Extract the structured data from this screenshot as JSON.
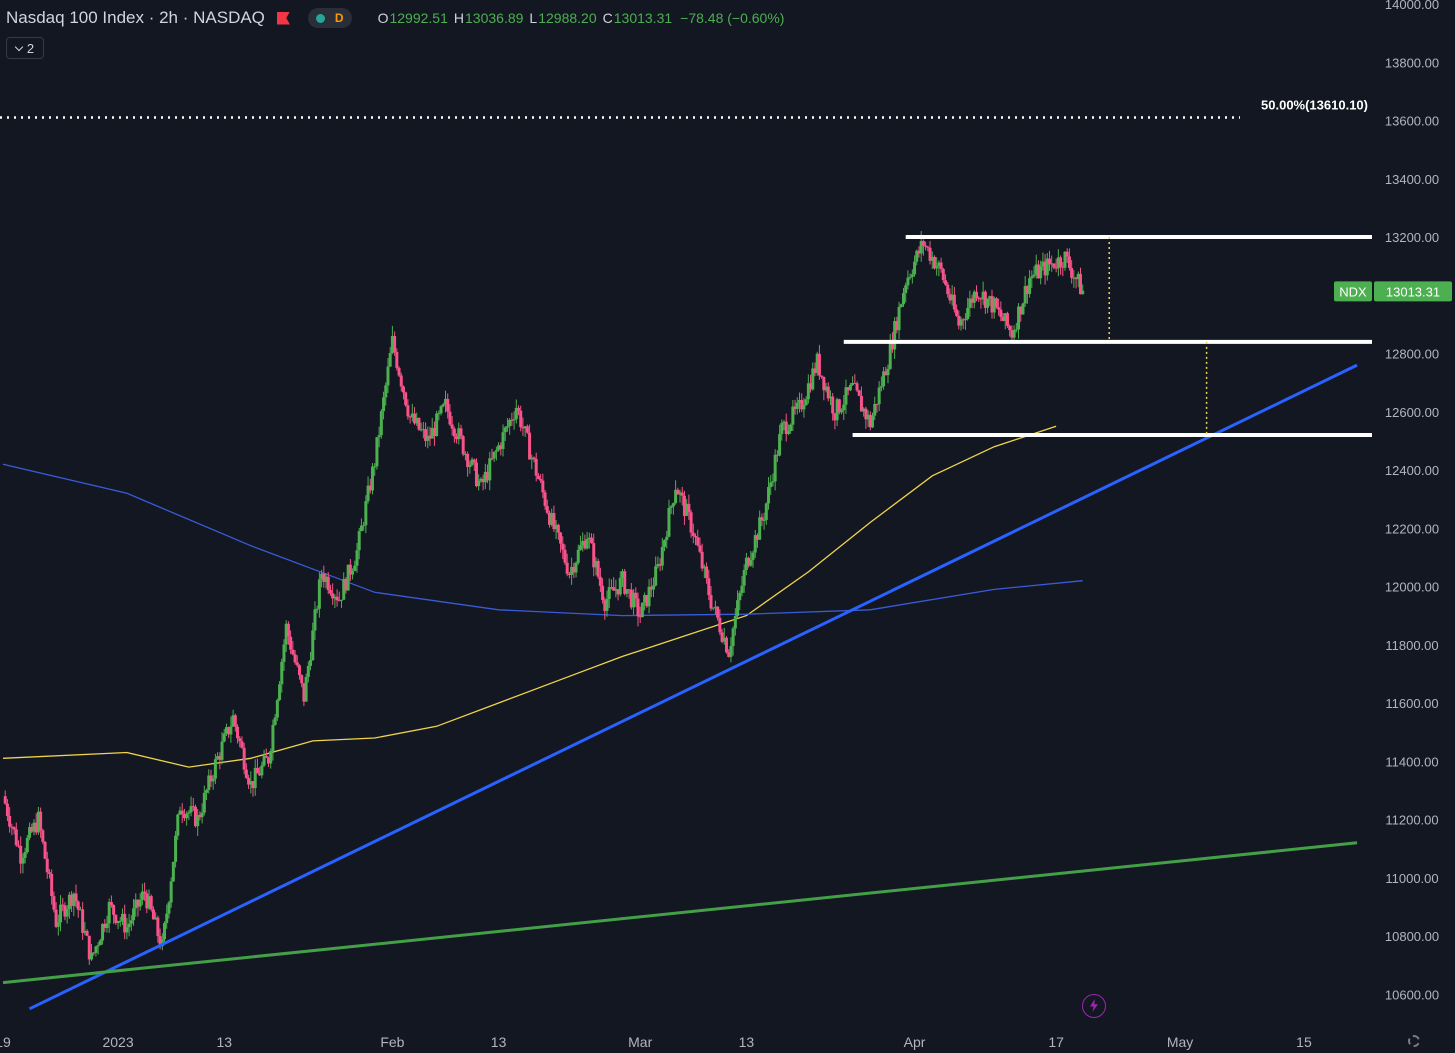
{
  "legend": {
    "symbol_title": "Nasdaq 100 Index · 2h · NASDAQ",
    "delay_badge": "D",
    "open_label": "O",
    "open": "12992.51",
    "high_label": "H",
    "high": "13036.89",
    "low_label": "L",
    "low": "12988.20",
    "close_label": "C",
    "close": "13013.31",
    "change": "−78.48 (−0.60%)"
  },
  "indicators_toggle": {
    "count": "2"
  },
  "colors": {
    "background": "#131722",
    "up_candle": "#4caf50",
    "down_candle": "#f7528a",
    "ma_short": "#f0d44c",
    "ma_long": "#3a5bd9",
    "trend_blue": "#2962ff",
    "trend_green": "#43a047",
    "levels": "#ffffff",
    "price_tag": "#4caf50"
  },
  "chart_data": {
    "type": "candlestick",
    "y_axis": {
      "range": [
        10500,
        14000
      ],
      "ticks": [
        "14000.00",
        "13800.00",
        "13600.00",
        "13400.00",
        "13200.00",
        "13000.00",
        "12800.00",
        "12600.00",
        "12400.00",
        "12200.00",
        "12000.00",
        "11800.00",
        "11600.00",
        "11400.00",
        "11200.00",
        "11000.00",
        "10800.00",
        "10600.00"
      ]
    },
    "x_axis": {
      "range": [
        "2022-12-19",
        "2023-05-21"
      ],
      "ticks": [
        {
          "date": "2022-12-19",
          "label": "19"
        },
        {
          "date": "2023-01-01",
          "label": "2023"
        },
        {
          "date": "2023-01-13",
          "label": "13"
        },
        {
          "date": "2023-02-01",
          "label": "Feb"
        },
        {
          "date": "2023-02-13",
          "label": "13"
        },
        {
          "date": "2023-03-01",
          "label": "Mar"
        },
        {
          "date": "2023-03-13",
          "label": "13"
        },
        {
          "date": "2023-04-01",
          "label": "Apr"
        },
        {
          "date": "2023-04-17",
          "label": "17"
        },
        {
          "date": "2023-05-01",
          "label": "May"
        },
        {
          "date": "2023-05-15",
          "label": "15"
        }
      ]
    },
    "price_path": [
      [
        "2022-12-19",
        11280
      ],
      [
        "2022-12-21",
        11080
      ],
      [
        "2022-12-23",
        11200
      ],
      [
        "2022-12-25",
        10850
      ],
      [
        "2022-12-27",
        10950
      ],
      [
        "2022-12-29",
        10720
      ],
      [
        "2022-12-31",
        10900
      ],
      [
        "2023-01-02",
        10830
      ],
      [
        "2023-01-04",
        10950
      ],
      [
        "2023-01-06",
        10760
      ],
      [
        "2023-01-08",
        11250
      ],
      [
        "2023-01-10",
        11200
      ],
      [
        "2023-01-12",
        11390
      ],
      [
        "2023-01-14",
        11550
      ],
      [
        "2023-01-16",
        11320
      ],
      [
        "2023-01-18",
        11410
      ],
      [
        "2023-01-20",
        11860
      ],
      [
        "2023-01-22",
        11620
      ],
      [
        "2023-01-24",
        12050
      ],
      [
        "2023-01-26",
        11960
      ],
      [
        "2023-01-28",
        12120
      ],
      [
        "2023-01-30",
        12430
      ],
      [
        "2023-02-01",
        12840
      ],
      [
        "2023-02-03",
        12580
      ],
      [
        "2023-02-05",
        12500
      ],
      [
        "2023-02-07",
        12620
      ],
      [
        "2023-02-09",
        12480
      ],
      [
        "2023-02-11",
        12340
      ],
      [
        "2023-02-13",
        12480
      ],
      [
        "2023-02-15",
        12620
      ],
      [
        "2023-02-17",
        12420
      ],
      [
        "2023-02-19",
        12220
      ],
      [
        "2023-02-21",
        12050
      ],
      [
        "2023-02-23",
        12180
      ],
      [
        "2023-02-25",
        11950
      ],
      [
        "2023-02-27",
        12020
      ],
      [
        "2023-03-01",
        11900
      ],
      [
        "2023-03-03",
        12060
      ],
      [
        "2023-03-05",
        12350
      ],
      [
        "2023-03-07",
        12190
      ],
      [
        "2023-03-09",
        11950
      ],
      [
        "2023-03-11",
        11780
      ],
      [
        "2023-03-13",
        12080
      ],
      [
        "2023-03-15",
        12250
      ],
      [
        "2023-03-17",
        12540
      ],
      [
        "2023-03-19",
        12610
      ],
      [
        "2023-03-21",
        12770
      ],
      [
        "2023-03-23",
        12600
      ],
      [
        "2023-03-25",
        12680
      ],
      [
        "2023-03-27",
        12560
      ],
      [
        "2023-03-29",
        12780
      ],
      [
        "2023-03-31",
        13050
      ],
      [
        "2023-04-02",
        13180
      ],
      [
        "2023-04-04",
        13080
      ],
      [
        "2023-04-06",
        12900
      ],
      [
        "2023-04-08",
        13020
      ],
      [
        "2023-04-10",
        12960
      ],
      [
        "2023-04-12",
        12870
      ],
      [
        "2023-04-14",
        13060
      ],
      [
        "2023-04-16",
        13100
      ],
      [
        "2023-04-18",
        13130
      ],
      [
        "2023-04-20",
        13013
      ]
    ],
    "moving_averages": [
      {
        "points": [
          [
            "2022-12-19",
            11410
          ],
          [
            "2023-01-02",
            11430
          ],
          [
            "2023-01-09",
            11380
          ],
          [
            "2023-01-16",
            11410
          ],
          [
            "2023-01-23",
            11470
          ],
          [
            "2023-01-30",
            11480
          ],
          [
            "2023-02-06",
            11520
          ],
          [
            "2023-02-13",
            11600
          ],
          [
            "2023-02-20",
            11680
          ],
          [
            "2023-02-27",
            11760
          ],
          [
            "2023-03-06",
            11830
          ],
          [
            "2023-03-13",
            11900
          ],
          [
            "2023-03-20",
            12050
          ],
          [
            "2023-03-27",
            12220
          ],
          [
            "2023-04-03",
            12380
          ],
          [
            "2023-04-10",
            12480
          ],
          [
            "2023-04-17",
            12550
          ]
        ]
      },
      {
        "points": [
          [
            "2022-12-19",
            12420
          ],
          [
            "2023-01-02",
            12320
          ],
          [
            "2023-01-16",
            12140
          ],
          [
            "2023-01-30",
            11980
          ],
          [
            "2023-02-13",
            11920
          ],
          [
            "2023-02-27",
            11900
          ],
          [
            "2023-03-13",
            11905
          ],
          [
            "2023-03-27",
            11920
          ],
          [
            "2023-04-10",
            11990
          ],
          [
            "2023-04-20",
            12020
          ]
        ]
      }
    ],
    "drawings": {
      "fib_level": {
        "price": 13610.1,
        "label": "50.00%(13610.10)"
      },
      "horizontal_levels": [
        {
          "price": 13200,
          "start": "2023-03-31"
        },
        {
          "price": 12840,
          "start": "2023-03-24"
        },
        {
          "price": 12520,
          "start": "2023-03-25"
        }
      ],
      "trendlines": [
        {
          "color_key": "trend_blue",
          "from": [
            "2022-12-22",
            10550
          ],
          "to": [
            "2023-05-21",
            12760
          ]
        },
        {
          "color_key": "trend_green",
          "from": [
            "2022-12-19",
            10640
          ],
          "to": [
            "2023-05-21",
            11120
          ]
        }
      ],
      "projections": [
        {
          "date": "2023-04-23",
          "from": 13200,
          "to": 12840
        },
        {
          "date": "2023-05-04",
          "from": 12840,
          "to": 12520
        }
      ]
    },
    "last_price": {
      "symbol": "NDX",
      "value": "13013.31",
      "numeric": 13013.31
    }
  }
}
